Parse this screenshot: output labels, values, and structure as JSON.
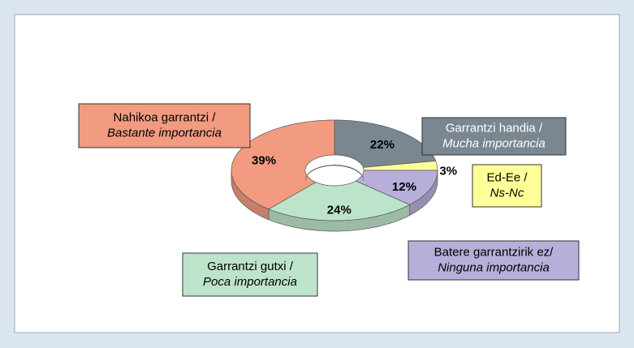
{
  "chart_data": {
    "type": "pie",
    "donut": true,
    "categories": [
      [
        "Garrantzi handia /",
        "Mucha importancia"
      ],
      [
        "Ed-Ee /",
        "Ns-Nc"
      ],
      [
        "Batere garrantzirik ez/",
        "Ninguna importancia"
      ],
      [
        "Garrantzi gutxi /",
        "Poca importancia"
      ],
      [
        "Nahikoa garrantzi /",
        "Bastante importancia"
      ]
    ],
    "values": [
      22,
      3,
      12,
      24,
      39
    ],
    "value_labels": [
      "22%",
      "3%",
      "12%",
      "24%",
      "39%"
    ],
    "colors": [
      "#7a8791",
      "#ffff99",
      "#b8aeda",
      "#bde4cb",
      "#f29b81"
    ]
  }
}
